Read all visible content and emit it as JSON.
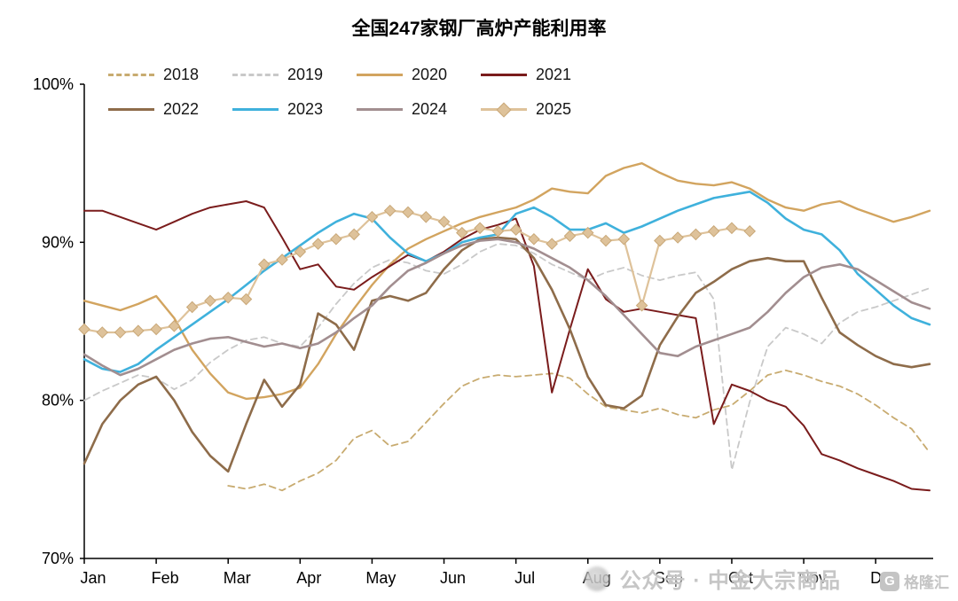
{
  "title": "全国247家钢厂高炉产能利用率",
  "watermark": {
    "wechat_text": "公众号 · 中金大宗商品",
    "logo_g": "G",
    "logo_name": "格隆汇"
  },
  "chart_data": {
    "type": "line",
    "title": "全国247家钢厂高炉产能利用率",
    "x_months": [
      "Jan",
      "Feb",
      "Mar",
      "Apr",
      "May",
      "Jun",
      "Jul",
      "Aug",
      "Sep",
      "Oct",
      "Nov",
      "Dec"
    ],
    "points_per_month": 4,
    "unit": "%",
    "ylim": [
      70,
      100
    ],
    "yticks": [
      {
        "value": 100,
        "label": "100%"
      },
      {
        "value": 90,
        "label": "90%"
      },
      {
        "value": 80,
        "label": "80%"
      },
      {
        "value": 70,
        "label": "70%"
      }
    ],
    "grid": false,
    "legend_position": "top-left two rows",
    "series": [
      {
        "name": "2018",
        "color": "#c8ab70",
        "dash": true,
        "width": 1.8,
        "values": [
          null,
          null,
          null,
          null,
          null,
          null,
          null,
          null,
          74.6,
          74.4,
          74.7,
          74.3,
          74.9,
          75.4,
          76.2,
          77.6,
          78.1,
          77.1,
          77.4,
          78.6,
          79.8,
          80.9,
          81.4,
          81.6,
          81.5,
          81.6,
          81.7,
          81.4,
          80.4,
          79.6,
          79.4,
          79.2,
          79.5,
          79.1,
          78.9,
          79.4,
          79.7,
          80.6,
          81.6,
          81.9,
          81.6,
          81.2,
          80.9,
          80.4,
          79.7,
          78.9,
          78.2,
          76.7
        ]
      },
      {
        "name": "2019",
        "color": "#c9c9c9",
        "dash": true,
        "width": 1.8,
        "values": [
          80,
          80.6,
          81.1,
          81.6,
          81.4,
          80.7,
          81.3,
          82.4,
          83.2,
          83.8,
          84,
          83.6,
          83.4,
          84.6,
          86.1,
          87.4,
          88.4,
          88.9,
          88.7,
          88.2,
          88,
          88.6,
          89.4,
          89.9,
          89.8,
          89.3,
          88.6,
          88.1,
          87.6,
          88.1,
          88.4,
          87.9,
          87.6,
          87.9,
          88.1,
          86.4,
          75.6,
          79.9,
          83.4,
          84.6,
          84.2,
          83.6,
          84.9,
          85.6,
          85.9,
          86.3,
          86.7,
          87.1
        ]
      },
      {
        "name": "2020",
        "color": "#d2a45f",
        "dash": false,
        "width": 2.4,
        "values": [
          86.3,
          86,
          85.7,
          86.1,
          86.6,
          85.2,
          83.2,
          81.7,
          80.5,
          80.1,
          80.2,
          80.4,
          80.8,
          82.3,
          84.2,
          85.8,
          87.3,
          88.6,
          89.6,
          90.2,
          90.7,
          91.2,
          91.6,
          91.9,
          92.2,
          92.7,
          93.4,
          93.2,
          93.1,
          94.2,
          94.7,
          95,
          94.4,
          93.9,
          93.7,
          93.6,
          93.8,
          93.4,
          92.7,
          92.2,
          92,
          92.4,
          92.6,
          92.1,
          91.7,
          91.3,
          91.6,
          92
        ]
      },
      {
        "name": "2021",
        "color": "#7a1c1c",
        "dash": false,
        "width": 2.0,
        "values": [
          92,
          92,
          91.6,
          91.2,
          90.8,
          91.3,
          91.8,
          92.2,
          92.4,
          92.6,
          92.2,
          90.3,
          88.3,
          88.6,
          87.2,
          87,
          87.8,
          88.5,
          89.2,
          88.8,
          89.4,
          90.2,
          90.8,
          91.1,
          91.5,
          88.5,
          80.5,
          84.5,
          88.3,
          86.4,
          85.6,
          85.8,
          85.6,
          85.4,
          85.2,
          78.5,
          81,
          80.6,
          80,
          79.6,
          78.4,
          76.6,
          76.2,
          75.7,
          75.3,
          74.9,
          74.4,
          74.3
        ]
      },
      {
        "name": "2022",
        "color": "#8e6c4a",
        "dash": false,
        "width": 2.6,
        "values": [
          76,
          78.5,
          80,
          81,
          81.5,
          80,
          78,
          76.5,
          75.5,
          78.5,
          81.3,
          79.6,
          81,
          85.5,
          84.8,
          83.2,
          86.3,
          86.6,
          86.3,
          86.8,
          88.3,
          89.5,
          90.2,
          90.3,
          90.2,
          89,
          87,
          84.5,
          81.5,
          79.7,
          79.5,
          80.3,
          83.5,
          85.3,
          86.8,
          87.5,
          88.3,
          88.8,
          89,
          88.8,
          88.8,
          86.5,
          84.3,
          83.5,
          82.8,
          82.3,
          82.1,
          82.3
        ]
      },
      {
        "name": "2023",
        "color": "#3fb1dc",
        "dash": false,
        "width": 2.6,
        "values": [
          82.6,
          82,
          81.8,
          82.3,
          83.2,
          84,
          84.8,
          85.6,
          86.4,
          87.3,
          88.2,
          89,
          89.8,
          90.6,
          91.3,
          91.8,
          91.5,
          90.3,
          89.3,
          88.8,
          89.3,
          90,
          90.3,
          90.5,
          91.8,
          92.2,
          91.6,
          90.8,
          90.8,
          91.2,
          90.6,
          91,
          91.5,
          92,
          92.4,
          92.8,
          93,
          93.2,
          92.5,
          91.5,
          90.8,
          90.5,
          89.5,
          88,
          87,
          86,
          85.2,
          84.8
        ]
      },
      {
        "name": "2024",
        "color": "#a28e90",
        "dash": false,
        "width": 2.6,
        "values": [
          82.9,
          82.2,
          81.6,
          82,
          82.6,
          83.2,
          83.6,
          83.9,
          84,
          83.7,
          83.4,
          83.6,
          83.3,
          83.6,
          84.3,
          85.2,
          86,
          87.2,
          88.2,
          88.7,
          89.3,
          89.8,
          90.1,
          90.2,
          90,
          89.6,
          89,
          88.4,
          87.6,
          86.6,
          85.4,
          84.2,
          83,
          82.8,
          83.4,
          83.8,
          84.2,
          84.6,
          85.6,
          86.8,
          87.8,
          88.4,
          88.6,
          88.3,
          87.6,
          86.9,
          86.2,
          85.8
        ]
      },
      {
        "name": "2025",
        "color": "#dec29a",
        "dash": false,
        "width": 2.2,
        "marker": "diamond",
        "marker_edge": "#c9a878",
        "values": [
          84.5,
          84.3,
          84.3,
          84.4,
          84.5,
          84.7,
          85.9,
          86.3,
          86.5,
          86.4,
          88.6,
          88.9,
          89.4,
          89.9,
          90.2,
          90.5,
          91.6,
          92,
          91.9,
          91.6,
          91.3,
          90.6,
          90.9,
          90.7,
          90.8,
          90.2,
          89.9,
          90.4,
          90.6,
          90.1,
          90.2,
          86,
          90.1,
          90.3,
          90.5,
          90.7,
          90.9,
          90.7,
          null,
          null,
          null,
          null,
          null,
          null,
          null,
          null,
          null,
          null
        ]
      }
    ]
  }
}
